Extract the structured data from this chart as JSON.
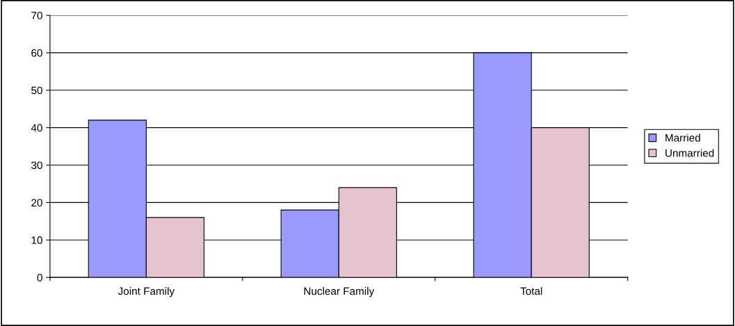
{
  "chart_data": {
    "type": "bar",
    "categories": [
      "Joint Family",
      "Nuclear Family",
      "Total"
    ],
    "series": [
      {
        "name": "Married",
        "color": "#9999ff",
        "values": [
          42,
          18,
          60
        ]
      },
      {
        "name": "Unmarried",
        "color": "#e6c4cf",
        "values": [
          16,
          24,
          40
        ]
      }
    ],
    "ylim": [
      0,
      70
    ],
    "yticks": [
      0,
      10,
      20,
      30,
      40,
      50,
      60,
      70
    ],
    "grid": "y",
    "legend": "right"
  }
}
